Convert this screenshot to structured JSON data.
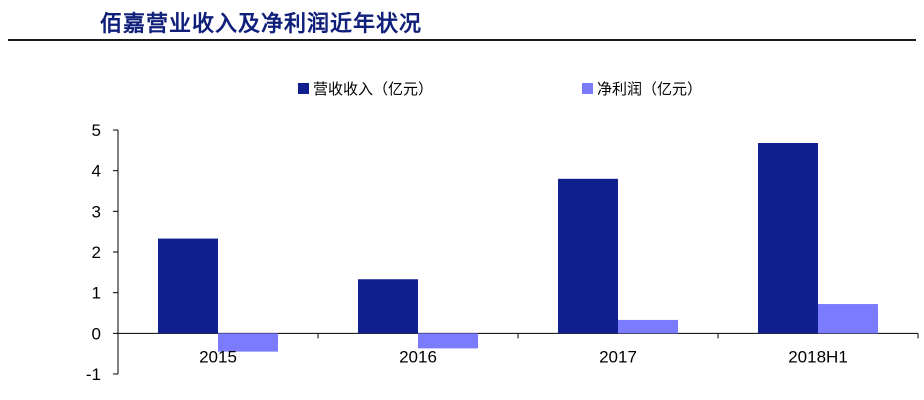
{
  "title": "佰嘉营业收入及净利润近年状况",
  "colors": {
    "title": "#0f1f7a",
    "revenue": "#0f1f8e",
    "profit": "#7b7bff",
    "axis": "#000000"
  },
  "chart_data": {
    "type": "bar",
    "title": "",
    "xlabel": "",
    "ylabel": "",
    "categories": [
      "2015",
      "2016",
      "2017",
      "2018H1"
    ],
    "series": [
      {
        "name": "营收收入（亿元）",
        "values": [
          2.33,
          1.33,
          3.8,
          4.68
        ]
      },
      {
        "name": "净利润（亿元）",
        "values": [
          -0.45,
          -0.37,
          0.33,
          0.72
        ]
      }
    ],
    "ylim": [
      -1,
      5
    ],
    "yticks": [
      "-1",
      "0",
      "1",
      "2",
      "3",
      "4",
      "5"
    ],
    "grid": false,
    "legend": "top-center"
  }
}
